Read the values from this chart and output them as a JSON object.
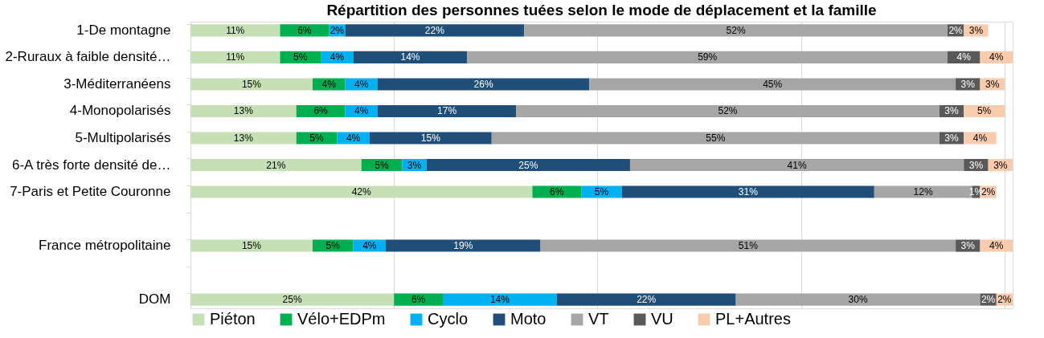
{
  "chart_data": {
    "type": "bar",
    "orientation": "horizontal",
    "stacked": true,
    "title": "Répartition des personnes tuées selon le mode de déplacement et la famille",
    "categories": [
      "1-De montagne",
      "2-Ruraux à faible densité…",
      "3-Méditerranéens",
      "4-Monopolarisés",
      "5-Multipolarisés",
      "6-A très forte densité de…",
      "7-Paris et Petite Couronne",
      null,
      "France métropolitaine",
      null,
      "DOM"
    ],
    "xlim": [
      0,
      101
    ],
    "xticks": [
      {
        "value": 0,
        "label": null
      },
      {
        "value": 25,
        "label": null
      },
      {
        "value": 50,
        "label": null
      },
      {
        "value": 75,
        "label": null
      },
      {
        "value": 100,
        "label": null
      }
    ],
    "tick_labels": "y",
    "grid": "x",
    "legend": "bottom",
    "series": [
      {
        "name": "Piéton",
        "color": "#c5e0b4",
        "values": [
          11,
          11,
          15,
          13,
          13,
          21,
          42,
          null,
          15,
          null,
          25
        ],
        "value_labels": [
          "11%",
          "11%",
          "15%",
          "13%",
          "13%",
          "21%",
          "42%",
          null,
          "15%",
          null,
          "25%"
        ]
      },
      {
        "name": "Vélo+EDPm",
        "color": "#00b050",
        "values": [
          6,
          5,
          4,
          6,
          5,
          5,
          6,
          null,
          5,
          null,
          6
        ],
        "value_labels": [
          "6%",
          "5%",
          "4%",
          "6%",
          "5%",
          "5%",
          "6%",
          null,
          "5%",
          null,
          "6%"
        ]
      },
      {
        "name": "Cyclo",
        "color": "#00b0f0",
        "values": [
          2,
          4,
          4,
          4,
          4,
          3,
          5,
          null,
          4,
          null,
          14
        ],
        "value_labels": [
          "2%",
          "4%",
          "4%",
          "4%",
          "4%",
          "3%",
          "5%",
          null,
          "4%",
          null,
          "14%"
        ]
      },
      {
        "name": "Moto",
        "color": "#1f4e79",
        "values": [
          22,
          14,
          26,
          17,
          15,
          25,
          31,
          null,
          19,
          null,
          22
        ],
        "value_labels": [
          "22%",
          "14%",
          "26%",
          "17%",
          "15%",
          "25%",
          "31%",
          null,
          "19%",
          null,
          "22%"
        ]
      },
      {
        "name": "VT",
        "color": "#a6a6a6",
        "values": [
          52,
          59,
          45,
          52,
          55,
          41,
          12,
          null,
          51,
          null,
          30
        ],
        "value_labels": [
          "52%",
          "59%",
          "45%",
          "52%",
          "55%",
          "41%",
          "12%",
          null,
          "51%",
          null,
          "30%"
        ]
      },
      {
        "name": "VU",
        "color": "#595959",
        "values": [
          2,
          4,
          3,
          3,
          3,
          3,
          1,
          null,
          3,
          null,
          2
        ],
        "value_labels": [
          "2%",
          "4%",
          "3%",
          "3%",
          "3%",
          "3%",
          "1%",
          null,
          "3%",
          null,
          "2%"
        ]
      },
      {
        "name": "PL+Autres",
        "color": "#f8cbad",
        "values": [
          3,
          4,
          3,
          5,
          4,
          3,
          2,
          null,
          4,
          null,
          2
        ],
        "value_labels": [
          "3%",
          "4%",
          "3%",
          "5%",
          "4%",
          "3%",
          "2%",
          null,
          "4%",
          null,
          "2%"
        ]
      }
    ]
  }
}
